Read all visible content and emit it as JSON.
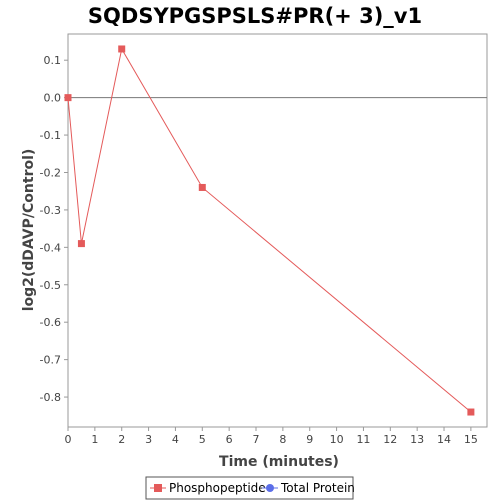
{
  "chart_data": {
    "type": "line",
    "title": "SQDSYPGSPSLS#PR(+ 3)_v1",
    "xlabel": "Time (minutes)",
    "ylabel": "log2(dDAVP/Control)",
    "xlim": [
      0,
      15.6
    ],
    "ylim": [
      -0.88,
      0.17
    ],
    "x_ticks": [
      0,
      1,
      2,
      3,
      4,
      5,
      6,
      7,
      8,
      9,
      10,
      11,
      12,
      13,
      14,
      15
    ],
    "y_ticks": [
      0.1,
      0.0,
      -0.1,
      -0.2,
      -0.3,
      -0.4,
      -0.5,
      -0.6,
      -0.7,
      -0.8
    ],
    "y_tick_labels": [
      "0.1",
      "0.0",
      "-0.1",
      "-0.2",
      "-0.3",
      "-0.4",
      "-0.5",
      "-0.6",
      "-0.7",
      "-0.8"
    ],
    "zero_line": true,
    "grid": false,
    "legend_position": "bottom",
    "series": [
      {
        "name": "Phosphopeptide",
        "color": "#e45a5a",
        "marker": "square",
        "x": [
          0,
          0.5,
          2,
          5,
          15
        ],
        "y": [
          0.0,
          -0.39,
          0.13,
          -0.24,
          -0.84
        ]
      },
      {
        "name": "Total Protein",
        "color": "#5b6ee8",
        "marker": "circle",
        "x": [],
        "y": []
      }
    ]
  }
}
